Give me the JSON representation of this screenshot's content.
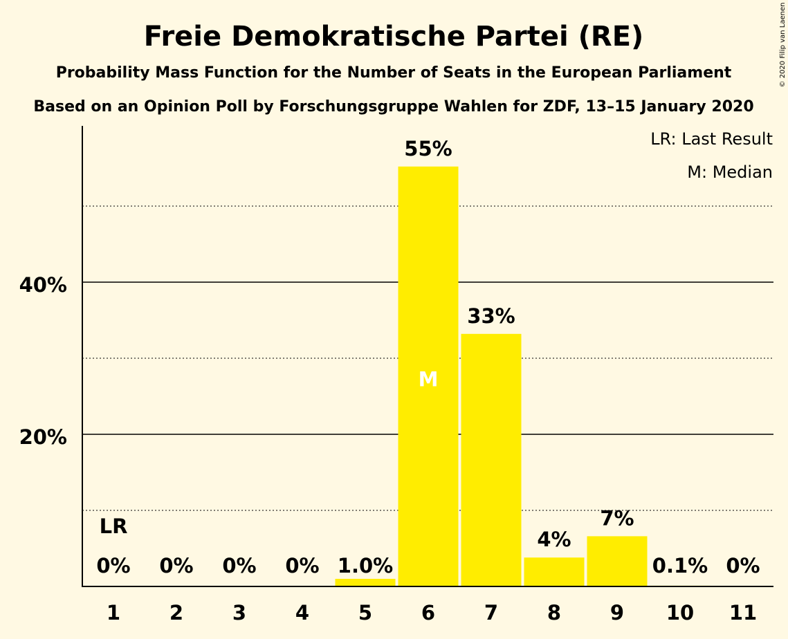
{
  "chart_data": {
    "type": "bar",
    "title": "Freie Demokratische Partei (RE)",
    "subtitle1": "Probability Mass Function for the Number of Seats in the European Parliament",
    "subtitle2": "Based on an Opinion Poll by Forschungsgruppe Wahlen for ZDF, 13–15 January 2020",
    "copyright": "© 2020 Filip van Laenen",
    "categories": [
      "1",
      "2",
      "3",
      "4",
      "5",
      "6",
      "7",
      "8",
      "9",
      "10",
      "11"
    ],
    "values": [
      0,
      0,
      0,
      0,
      1.0,
      55,
      33,
      4,
      7,
      0.1,
      0
    ],
    "bar_heights": [
      0,
      0,
      0,
      0,
      1.0,
      55.2,
      33.2,
      3.8,
      6.6,
      0.1,
      0
    ],
    "value_labels": [
      "0%",
      "0%",
      "0%",
      "0%",
      "1.0%",
      "55%",
      "33%",
      "4%",
      "7%",
      "0.1%",
      "0%"
    ],
    "ylim": [
      0,
      60
    ],
    "yticks": [
      {
        "value": 20,
        "label": "20%"
      },
      {
        "value": 40,
        "label": "40%"
      }
    ],
    "minor_gridlines": [
      10,
      30,
      50
    ],
    "last_result_category": "1",
    "last_result_marker": "LR",
    "median_category": "6",
    "median_marker": "M",
    "legend": [
      "LR: Last Result",
      "M: Median"
    ],
    "legend_position": "top-right",
    "bar_color": "#FFED00",
    "background_color": "#FFF9E3"
  }
}
